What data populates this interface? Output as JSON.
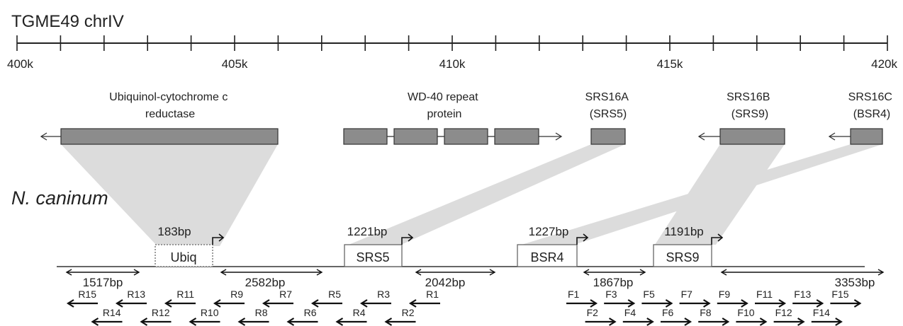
{
  "title": "TGME49 chrIV",
  "axis": {
    "ticks": [
      400,
      401,
      402,
      403,
      404,
      405,
      406,
      407,
      408,
      409,
      410,
      411,
      412,
      413,
      414,
      415,
      416,
      417,
      418,
      419,
      420
    ],
    "labels": [
      {
        "value": 400,
        "text": "400k"
      },
      {
        "value": 405,
        "text": "405k"
      },
      {
        "value": 410,
        "text": "410k"
      },
      {
        "value": 415,
        "text": "415k"
      },
      {
        "value": 420,
        "text": "420k"
      }
    ]
  },
  "tg_genes": [
    {
      "id": "ubiq",
      "label_lines": [
        "Ubiquinol-cytochrome c",
        "reductase"
      ]
    },
    {
      "id": "wd40",
      "label_lines": [
        "WD-40 repeat",
        "protein"
      ]
    },
    {
      "id": "srs16a",
      "label_lines": [
        "SRS16A",
        "(SRS5)"
      ]
    },
    {
      "id": "srs16b",
      "label_lines": [
        "SRS16B",
        "(SRS9)"
      ]
    },
    {
      "id": "srs16c",
      "label_lines": [
        "SRS16C",
        "(BSR4)"
      ]
    }
  ],
  "species_label": "N. caninum",
  "nc_blocks": [
    {
      "id": "ubiq",
      "label": "Ubiq",
      "size": "183bp"
    },
    {
      "id": "srs5",
      "label": "SRS5",
      "size": "1221bp"
    },
    {
      "id": "bsr4",
      "label": "BSR4",
      "size": "1227bp"
    },
    {
      "id": "srs9",
      "label": "SRS9",
      "size": "1191bp"
    }
  ],
  "distances": [
    "1517bp",
    "2582bp",
    "2042bp",
    "1867bp",
    "3353bp"
  ],
  "reverse_primers": [
    "R1",
    "R2",
    "R3",
    "R4",
    "R5",
    "R6",
    "R7",
    "R8",
    "R9",
    "R10",
    "R11",
    "R12",
    "R13",
    "R14",
    "R15"
  ],
  "forward_primers": [
    "F1",
    "F2",
    "F3",
    "F4",
    "F5",
    "F6",
    "F7",
    "F8",
    "F9",
    "F10",
    "F11",
    "F12",
    "F13",
    "F14",
    "F15"
  ]
}
